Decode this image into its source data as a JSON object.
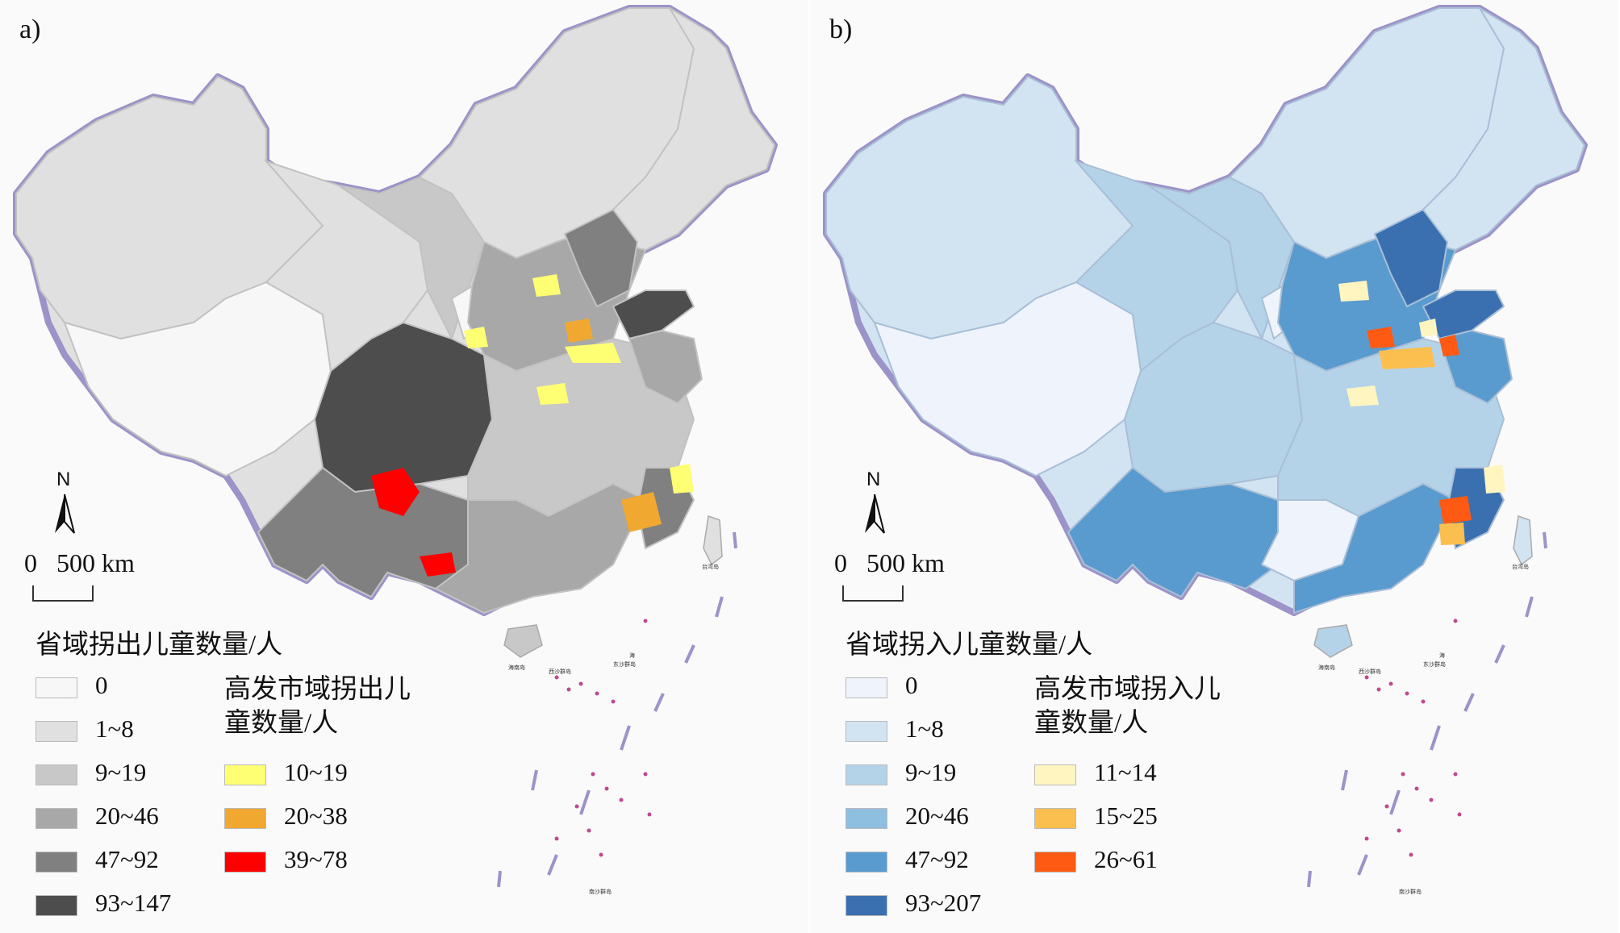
{
  "panel_a": {
    "label": "a)",
    "scale_label": "0   500 km",
    "north_label": "N",
    "legend_title": "省域拐出儿童数量/人",
    "legend_items": [
      {
        "label": "0",
        "color": "#f7f7f7"
      },
      {
        "label": "1~8",
        "color": "#e0e0e0"
      },
      {
        "label": "9~19",
        "color": "#c8c8c8"
      },
      {
        "label": "20~46",
        "color": "#a8a8a8"
      },
      {
        "label": "47~92",
        "color": "#808080"
      },
      {
        "label": "93~147",
        "color": "#4d4d4d"
      }
    ],
    "legend2_title": "高发市域拐出儿童数量/人",
    "legend2_items": [
      {
        "label": "10~19",
        "color": "#ffff73"
      },
      {
        "label": "20~38",
        "color": "#f0a830"
      },
      {
        "label": "39~78",
        "color": "#ff0000"
      }
    ]
  },
  "panel_b": {
    "label": "b)",
    "scale_label": "0   500 km",
    "north_label": "N",
    "legend_title": "省域拐入儿童数量/人",
    "legend_items": [
      {
        "label": "0",
        "color": "#eff3fb"
      },
      {
        "label": "1~8",
        "color": "#d2e3f2"
      },
      {
        "label": "9~19",
        "color": "#b4d3e9"
      },
      {
        "label": "20~46",
        "color": "#8ebfe0"
      },
      {
        "label": "47~92",
        "color": "#5a9bcf"
      },
      {
        "label": "93~207",
        "color": "#3a70b0"
      }
    ],
    "legend2_title": "高发市域拐入儿童数量/人",
    "legend2_items": [
      {
        "label": "11~14",
        "color": "#fff5c0"
      },
      {
        "label": "15~25",
        "color": "#fbbf50"
      },
      {
        "label": "26~61",
        "color": "#ff5a14"
      }
    ]
  },
  "inset_labels": {
    "south_china_sea": "海",
    "xisha": "西沙群岛",
    "nansha": "南沙群岛",
    "dongsha": "东沙群岛",
    "taiwan": "台湾岛",
    "hainan": "海南岛"
  }
}
